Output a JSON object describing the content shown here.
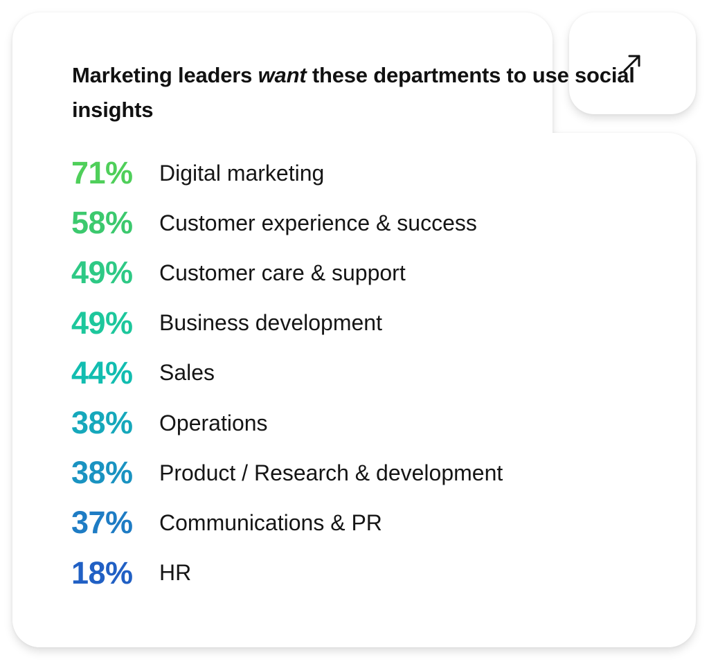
{
  "title": {
    "part1": "Marketing leaders ",
    "emphasis": "want",
    "part2": " these departments to use social insights"
  },
  "expand_button": {
    "icon": "arrow-up-right-icon"
  },
  "chart_data": {
    "type": "table",
    "title": "Marketing leaders want these departments to use social insights",
    "rows": [
      {
        "value": "71%",
        "label": "Digital marketing",
        "color": "#4fcf5a"
      },
      {
        "value": "58%",
        "label": "Customer experience & success",
        "color": "#3cc96e"
      },
      {
        "value": "49%",
        "label": "Customer care & support",
        "color": "#2ec985"
      },
      {
        "value": "49%",
        "label": "Business development",
        "color": "#1dc79c"
      },
      {
        "value": "44%",
        "label": "Sales",
        "color": "#12bdb0"
      },
      {
        "value": "38%",
        "label": "Operations",
        "color": "#16a8bb"
      },
      {
        "value": "38%",
        "label": "Product / Research & development",
        "color": "#1a93c1"
      },
      {
        "value": "37%",
        "label": "Communications & PR",
        "color": "#1e7cc4"
      },
      {
        "value": "18%",
        "label": "HR",
        "color": "#2160c4"
      }
    ]
  }
}
